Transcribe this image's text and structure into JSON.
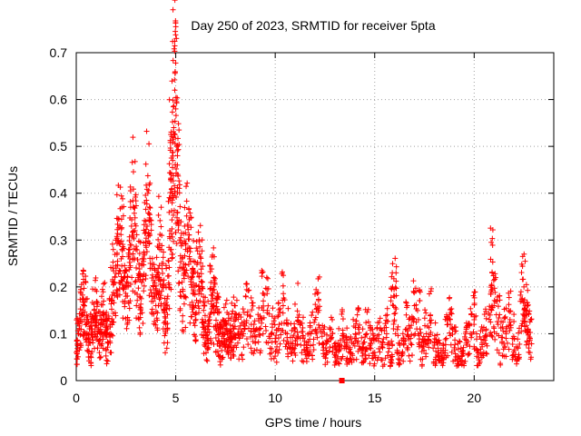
{
  "chart_data": {
    "type": "scatter",
    "title": "Day 250 of 2023, SRMTID for receiver 5pta",
    "xlabel": "GPS time / hours",
    "ylabel": "SRMTID / TECUs",
    "xlim": [
      0,
      24
    ],
    "ylim": [
      0,
      0.7
    ],
    "xticks": [
      0,
      5,
      10,
      15,
      20
    ],
    "yticks": [
      0,
      0.1,
      0.2,
      0.3,
      0.4,
      0.5,
      0.6,
      0.7
    ],
    "xtick_labels": [
      "0",
      "5",
      "10",
      "15",
      "20"
    ],
    "ytick_labels": [
      "0",
      "0.1",
      "0.2",
      "0.3",
      "0.4",
      "0.5",
      "0.6",
      "0.7"
    ],
    "grid": true,
    "marker": "+",
    "color": "#ff0000",
    "series": [
      {
        "name": "SRMTID",
        "x": [
          0.0,
          0.1,
          0.2,
          0.3,
          0.4,
          0.5,
          0.6,
          0.7,
          0.8,
          0.9,
          1.0,
          1.1,
          1.2,
          1.3,
          1.4,
          1.5,
          1.6,
          1.7,
          1.8,
          1.9,
          2.0,
          2.1,
          2.2,
          2.3,
          2.4,
          2.5,
          2.6,
          2.7,
          2.8,
          2.9,
          3.0,
          3.1,
          3.2,
          3.3,
          3.4,
          3.5,
          3.6,
          3.7,
          3.8,
          3.9,
          4.0,
          4.1,
          4.2,
          4.3,
          4.4,
          4.5,
          4.6,
          4.7,
          4.75,
          4.8,
          4.85,
          4.9,
          4.95,
          5.0,
          5.05,
          5.1,
          5.2,
          5.3,
          5.4,
          5.5,
          5.6,
          5.7,
          5.8,
          5.9,
          6.0,
          6.1,
          6.2,
          6.3,
          6.4,
          6.5,
          6.6,
          6.7,
          6.8,
          6.9,
          7.0,
          7.1,
          7.2,
          7.3,
          7.4,
          7.5,
          7.6,
          7.7,
          7.8,
          7.9,
          8.0,
          8.2,
          8.4,
          8.6,
          8.8,
          9.0,
          9.2,
          9.4,
          9.6,
          9.8,
          10.0,
          10.2,
          10.4,
          10.6,
          10.8,
          11.0,
          11.2,
          11.4,
          11.6,
          11.8,
          12.0,
          12.2,
          12.4,
          12.6,
          12.8,
          13.0,
          13.2,
          13.4,
          13.6,
          13.8,
          14.0,
          14.2,
          14.4,
          14.6,
          14.8,
          15.0,
          15.2,
          15.4,
          15.6,
          15.8,
          15.9,
          16.0,
          16.2,
          16.4,
          16.6,
          16.8,
          17.0,
          17.2,
          17.4,
          17.6,
          17.8,
          18.0,
          18.2,
          18.4,
          18.6,
          18.8,
          19.0,
          19.2,
          19.4,
          19.6,
          19.8,
          20.0,
          20.2,
          20.4,
          20.6,
          20.8,
          20.9,
          21.0,
          21.2,
          21.4,
          21.6,
          21.8,
          22.0,
          22.2,
          22.4,
          22.5,
          22.6,
          22.7,
          22.8
        ],
        "y": [
          0.06,
          0.1,
          0.13,
          0.14,
          0.16,
          0.12,
          0.09,
          0.08,
          0.11,
          0.15,
          0.13,
          0.11,
          0.1,
          0.12,
          0.14,
          0.1,
          0.08,
          0.12,
          0.17,
          0.21,
          0.24,
          0.3,
          0.33,
          0.28,
          0.22,
          0.18,
          0.2,
          0.26,
          0.31,
          0.37,
          0.28,
          0.22,
          0.18,
          0.21,
          0.26,
          0.34,
          0.4,
          0.31,
          0.24,
          0.18,
          0.16,
          0.22,
          0.28,
          0.25,
          0.15,
          0.12,
          0.18,
          0.32,
          0.43,
          0.39,
          0.47,
          0.54,
          0.62,
          0.58,
          0.5,
          0.44,
          0.3,
          0.24,
          0.18,
          0.28,
          0.33,
          0.26,
          0.22,
          0.19,
          0.16,
          0.23,
          0.27,
          0.21,
          0.15,
          0.11,
          0.09,
          0.13,
          0.17,
          0.2,
          0.15,
          0.12,
          0.1,
          0.08,
          0.09,
          0.12,
          0.1,
          0.07,
          0.09,
          0.11,
          0.13,
          0.09,
          0.1,
          0.14,
          0.12,
          0.08,
          0.11,
          0.17,
          0.15,
          0.1,
          0.09,
          0.12,
          0.16,
          0.1,
          0.08,
          0.11,
          0.14,
          0.09,
          0.07,
          0.1,
          0.13,
          0.15,
          0.08,
          0.06,
          0.09,
          0.05,
          0.07,
          0.1,
          0.08,
          0.06,
          0.09,
          0.11,
          0.07,
          0.1,
          0.08,
          0.06,
          0.09,
          0.07,
          0.1,
          0.05,
          0.2,
          0.18,
          0.08,
          0.06,
          0.11,
          0.09,
          0.16,
          0.13,
          0.07,
          0.1,
          0.14,
          0.08,
          0.06,
          0.05,
          0.09,
          0.12,
          0.07,
          0.05,
          0.04,
          0.08,
          0.1,
          0.13,
          0.06,
          0.08,
          0.11,
          0.14,
          0.23,
          0.16,
          0.12,
          0.08,
          0.1,
          0.13,
          0.09,
          0.07,
          0.17,
          0.2,
          0.15,
          0.11,
          0.09
        ]
      }
    ]
  }
}
